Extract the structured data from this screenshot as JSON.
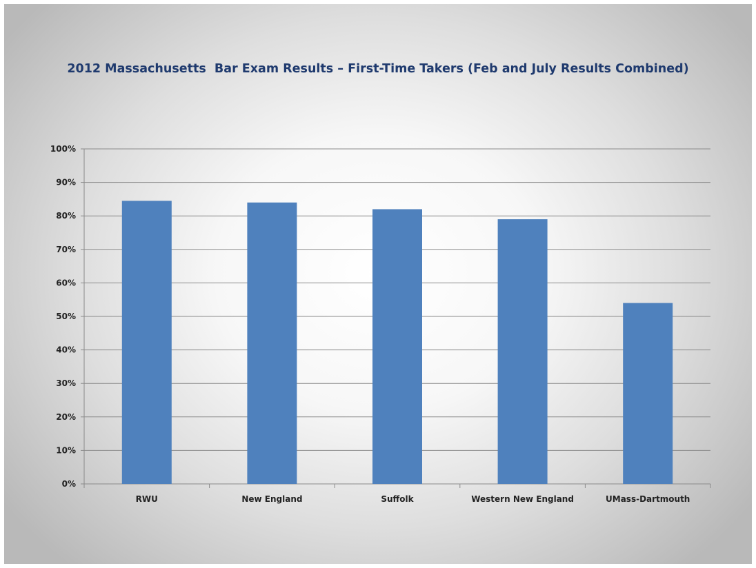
{
  "chart_data": {
    "type": "bar",
    "title": "2012 Massachusetts  Bar Exam Results – First-Time Takers (Feb and July Results Combined)",
    "xlabel": "",
    "ylabel": "",
    "categories": [
      "RWU",
      "New England",
      "Suffolk",
      "Western New England",
      "UMass-Dartmouth"
    ],
    "values": [
      84.5,
      84,
      82,
      79,
      54
    ],
    "ylim": [
      0,
      100
    ],
    "yticks": [
      0,
      10,
      20,
      30,
      40,
      50,
      60,
      70,
      80,
      90,
      100
    ],
    "ytick_labels": [
      "0%",
      "10%",
      "20%",
      "30%",
      "40%",
      "50%",
      "60%",
      "70%",
      "80%",
      "90%",
      "100%"
    ],
    "grid": true,
    "legend": "none",
    "bar_color": "#4f81bd",
    "title_color": "#1f3a6e"
  }
}
